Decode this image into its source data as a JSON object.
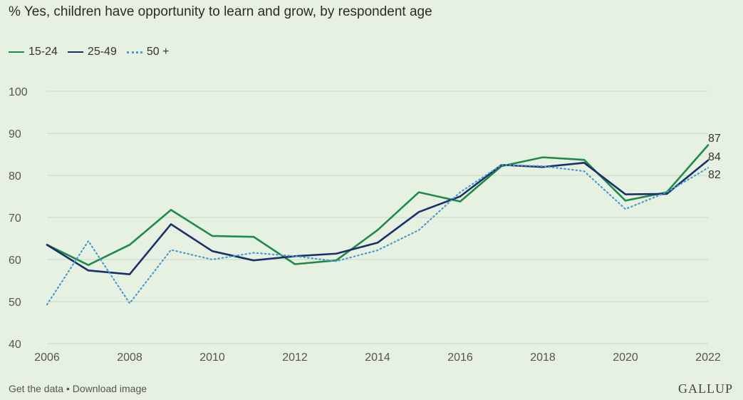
{
  "title": "% Yes, children have opportunity to learn and grow, by respondent age",
  "footer": {
    "get_data": "Get the data",
    "separator": " • ",
    "download": "Download image",
    "brand": "GALLUP"
  },
  "chart_data": {
    "type": "line",
    "title": "% Yes, children have opportunity to learn and grow, by respondent age",
    "xlabel": "",
    "ylabel": "",
    "x": [
      2006,
      2007,
      2008,
      2009,
      2010,
      2011,
      2012,
      2013,
      2014,
      2015,
      2016,
      2017,
      2018,
      2019,
      2020,
      2021,
      2022
    ],
    "xlim": [
      2006,
      2022
    ],
    "ylim": [
      40,
      100
    ],
    "y_ticks": [
      40,
      50,
      60,
      70,
      80,
      90,
      100
    ],
    "x_ticks": [
      2006,
      2008,
      2010,
      2012,
      2014,
      2016,
      2018,
      2020,
      2022
    ],
    "grid": true,
    "legend_position": "top-left",
    "series": [
      {
        "name": "15-24",
        "color": "#1e8b4a",
        "style": "solid",
        "values": [
          63.5,
          58.7,
          63.5,
          71.8,
          65.6,
          65.4,
          58.9,
          59.8,
          67.0,
          76.0,
          73.8,
          82.2,
          84.3,
          83.7,
          74.0,
          76.0,
          87.2
        ],
        "end_label": "87"
      },
      {
        "name": "25-49",
        "color": "#1b2f6b",
        "style": "solid",
        "values": [
          63.5,
          57.4,
          56.5,
          68.4,
          62.0,
          59.8,
          60.8,
          61.4,
          64.0,
          71.3,
          75.0,
          82.5,
          82.0,
          83.0,
          75.5,
          75.6,
          83.6
        ],
        "end_label": "84"
      },
      {
        "name": "50 +",
        "color": "#4a9bd0",
        "style": "dotted",
        "values": [
          49.3,
          64.4,
          49.6,
          62.3,
          60.0,
          61.6,
          60.8,
          59.6,
          62.2,
          67.0,
          76.0,
          82.5,
          82.2,
          81.0,
          72.0,
          76.0,
          81.8
        ],
        "end_label": "82"
      }
    ]
  }
}
